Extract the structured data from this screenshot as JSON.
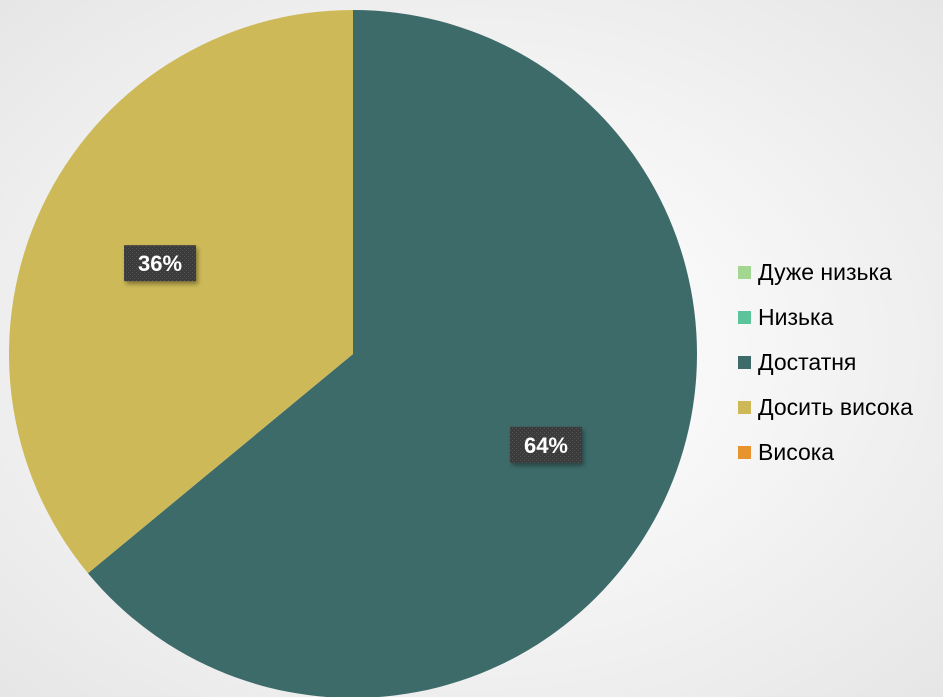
{
  "chart_data": {
    "type": "pie",
    "title": "",
    "categories": [
      "Дуже низька",
      "Низька",
      "Достатня",
      "Досить висока",
      "Висока"
    ],
    "values": [
      0,
      0,
      64,
      36,
      0
    ],
    "data_labels": [
      "",
      "",
      "64%",
      "36%",
      ""
    ],
    "colors": [
      "#a3d690",
      "#5cc49a",
      "#3d6b69",
      "#cdb957",
      "#e8942e"
    ],
    "start_angle": "12 o'clock",
    "direction": "clockwise",
    "legend_position": "right"
  }
}
